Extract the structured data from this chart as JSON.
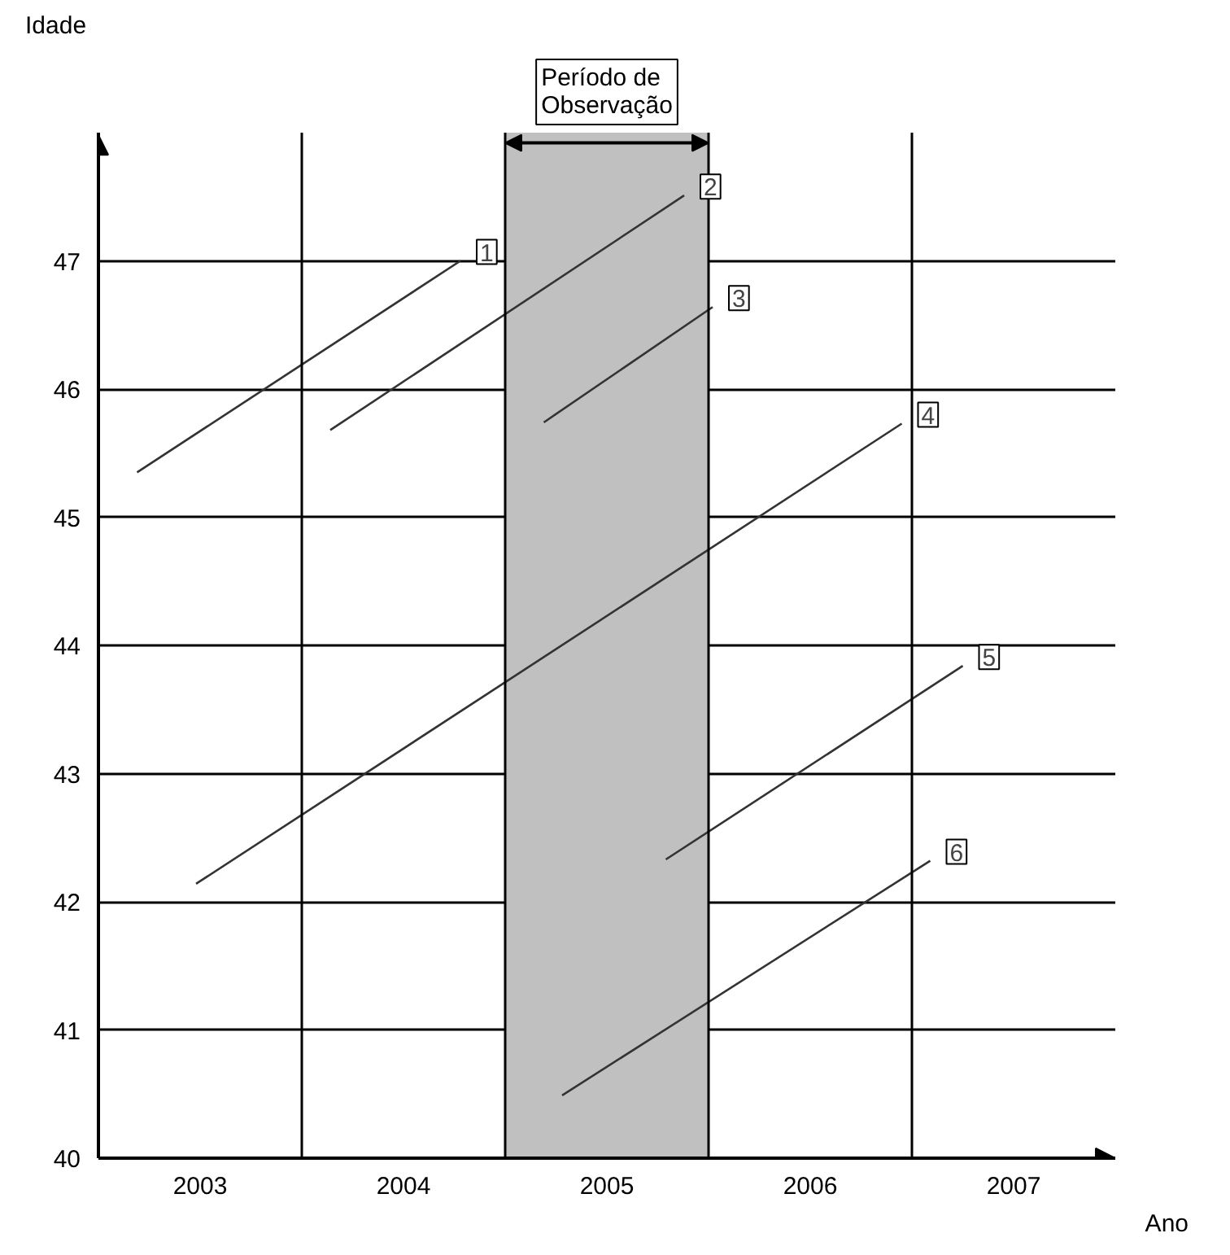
{
  "chart_data": {
    "type": "line",
    "xlabel": "Ano",
    "ylabel": "Idade",
    "xlim": [
      2003,
      2008
    ],
    "ylim": [
      40,
      48
    ],
    "xticks": [
      {
        "value": 2003.5,
        "label": "2003"
      },
      {
        "value": 2004.5,
        "label": "2004"
      },
      {
        "value": 2005.5,
        "label": "2005"
      },
      {
        "value": 2006.5,
        "label": "2006"
      },
      {
        "value": 2007.5,
        "label": "2007"
      }
    ],
    "yticks": [
      40,
      41,
      42,
      43,
      44,
      45,
      46,
      47
    ],
    "grid": "y",
    "marker": "none",
    "line_style": "solid",
    "series": [
      {
        "name": "1",
        "color": "#333333",
        "x": [
          2003.19,
          2004.78
        ],
        "values": [
          45.35,
          47.0
        ]
      },
      {
        "name": "2",
        "color": "#333333",
        "x": [
          2004.14,
          2005.88
        ],
        "values": [
          45.68,
          47.51
        ]
      },
      {
        "name": "3",
        "color": "#333333",
        "x": [
          2005.19,
          2006.02
        ],
        "values": [
          45.74,
          46.64
        ]
      },
      {
        "name": "4",
        "color": "#333333",
        "x": [
          2003.48,
          2006.95
        ],
        "values": [
          42.14,
          45.73
        ]
      },
      {
        "name": "5",
        "color": "#333333",
        "x": [
          2005.79,
          2007.25
        ],
        "values": [
          42.33,
          43.84
        ]
      },
      {
        "name": "6",
        "color": "#333333",
        "x": [
          2005.28,
          2007.09
        ],
        "values": [
          40.49,
          42.32
        ]
      }
    ],
    "ref_lines": [
      {
        "axis": "x",
        "value": 2004,
        "color": "#000000"
      },
      {
        "axis": "x",
        "value": 2005,
        "color": "#000000"
      },
      {
        "axis": "x",
        "value": 2006,
        "color": "#000000"
      },
      {
        "axis": "x",
        "value": 2007,
        "color": "#000000"
      }
    ],
    "bands": [
      {
        "axis": "x",
        "from": 2005,
        "to": 2006,
        "label": "Período de Observação",
        "color": "#c0c0c0"
      }
    ]
  }
}
